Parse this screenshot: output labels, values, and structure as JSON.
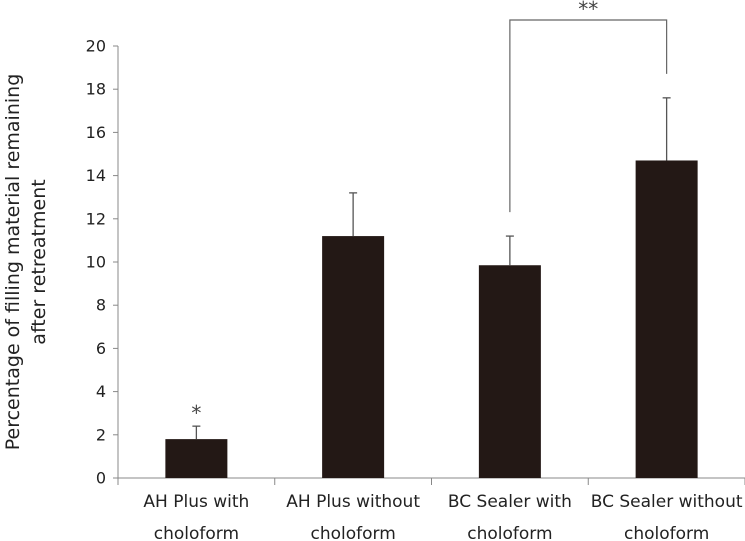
{
  "chart_data": {
    "type": "bar",
    "title": "",
    "xlabel": "",
    "ylabel_lines": [
      "Percentage of filling material remaining",
      "after retreatment"
    ],
    "ylim": [
      0,
      20
    ],
    "yticks": [
      0,
      2,
      4,
      6,
      8,
      10,
      12,
      14,
      16,
      18,
      20
    ],
    "categories": [
      [
        "AH Plus with",
        "choloform"
      ],
      [
        "AH Plus without",
        "choloform"
      ],
      [
        "BC Sealer with",
        "choloform"
      ],
      [
        "BC Sealer without",
        "choloform"
      ]
    ],
    "values": [
      1.8,
      11.2,
      9.85,
      14.7
    ],
    "errors": [
      0.6,
      2.0,
      1.35,
      2.9
    ],
    "bar_color": "#231815",
    "annotations": [
      {
        "category_index": 0,
        "text": "*"
      }
    ],
    "brackets": [
      {
        "from": 2,
        "to": 3,
        "text": "**"
      }
    ]
  }
}
